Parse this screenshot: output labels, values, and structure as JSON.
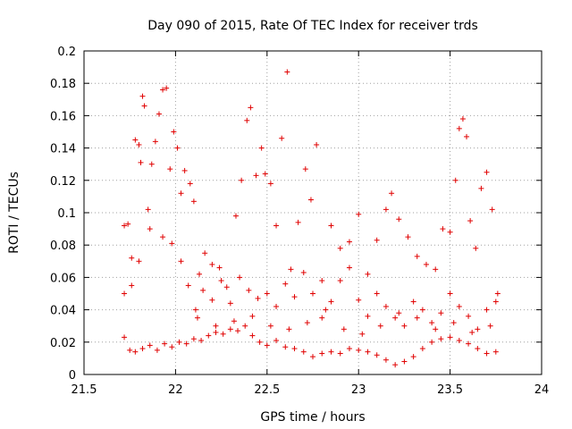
{
  "chart_data": {
    "type": "scatter",
    "title": "Day 090 of 2015, Rate Of TEC Index for receiver trds",
    "xlabel": "GPS time / hours",
    "ylabel": "ROTI / TECUs",
    "xlim": [
      21.5,
      24
    ],
    "ylim": [
      0,
      0.2
    ],
    "xticks": [
      21.5,
      22,
      22.5,
      23,
      23.5,
      24
    ],
    "xtick_labels": [
      "21.5",
      "22",
      "22.5",
      "23",
      "23.5",
      "24"
    ],
    "yticks": [
      0,
      0.02,
      0.04,
      0.06,
      0.08,
      0.1,
      0.12,
      0.14,
      0.16,
      0.18,
      0.2
    ],
    "ytick_labels": [
      "0",
      "0.02",
      "0.04",
      "0.06",
      "0.08",
      "0.1",
      "0.12",
      "0.14",
      "0.16",
      "0.18",
      "0.2"
    ],
    "grid": true,
    "marker": "+",
    "point_color": "#e00000",
    "series": [
      {
        "name": "ROTI",
        "points": [
          [
            21.72,
            0.023
          ],
          [
            21.75,
            0.015
          ],
          [
            21.78,
            0.014
          ],
          [
            21.82,
            0.016
          ],
          [
            21.86,
            0.018
          ],
          [
            21.9,
            0.015
          ],
          [
            21.94,
            0.019
          ],
          [
            21.98,
            0.017
          ],
          [
            22.02,
            0.02
          ],
          [
            22.06,
            0.019
          ],
          [
            22.1,
            0.022
          ],
          [
            22.14,
            0.021
          ],
          [
            22.18,
            0.024
          ],
          [
            22.22,
            0.026
          ],
          [
            22.26,
            0.025
          ],
          [
            22.3,
            0.028
          ],
          [
            22.34,
            0.027
          ],
          [
            22.38,
            0.03
          ],
          [
            22.42,
            0.024
          ],
          [
            22.46,
            0.02
          ],
          [
            22.5,
            0.018
          ],
          [
            22.55,
            0.021
          ],
          [
            22.6,
            0.017
          ],
          [
            22.65,
            0.016
          ],
          [
            22.7,
            0.014
          ],
          [
            22.75,
            0.011
          ],
          [
            22.8,
            0.013
          ],
          [
            22.85,
            0.014
          ],
          [
            22.9,
            0.013
          ],
          [
            22.95,
            0.016
          ],
          [
            23.0,
            0.015
          ],
          [
            23.05,
            0.014
          ],
          [
            23.1,
            0.012
          ],
          [
            23.15,
            0.009
          ],
          [
            23.2,
            0.006
          ],
          [
            23.25,
            0.008
          ],
          [
            23.3,
            0.011
          ],
          [
            23.35,
            0.016
          ],
          [
            23.4,
            0.02
          ],
          [
            23.45,
            0.022
          ],
          [
            23.5,
            0.023
          ],
          [
            23.55,
            0.021
          ],
          [
            23.6,
            0.019
          ],
          [
            23.65,
            0.016
          ],
          [
            23.7,
            0.013
          ],
          [
            23.75,
            0.014
          ],
          [
            21.72,
            0.092
          ],
          [
            21.74,
            0.093
          ],
          [
            21.76,
            0.072
          ],
          [
            21.78,
            0.145
          ],
          [
            21.8,
            0.142
          ],
          [
            21.81,
            0.131
          ],
          [
            21.82,
            0.172
          ],
          [
            21.83,
            0.166
          ],
          [
            21.85,
            0.102
          ],
          [
            21.87,
            0.13
          ],
          [
            21.89,
            0.144
          ],
          [
            21.91,
            0.161
          ],
          [
            21.93,
            0.176
          ],
          [
            21.95,
            0.177
          ],
          [
            21.97,
            0.127
          ],
          [
            21.99,
            0.15
          ],
          [
            22.01,
            0.14
          ],
          [
            22.03,
            0.112
          ],
          [
            22.05,
            0.126
          ],
          [
            22.08,
            0.118
          ],
          [
            22.1,
            0.107
          ],
          [
            22.13,
            0.062
          ],
          [
            22.16,
            0.075
          ],
          [
            22.2,
            0.068
          ],
          [
            22.24,
            0.066
          ],
          [
            22.28,
            0.054
          ],
          [
            22.33,
            0.098
          ],
          [
            22.36,
            0.12
          ],
          [
            22.39,
            0.157
          ],
          [
            22.41,
            0.165
          ],
          [
            22.44,
            0.123
          ],
          [
            22.47,
            0.14
          ],
          [
            22.49,
            0.124
          ],
          [
            22.52,
            0.118
          ],
          [
            22.55,
            0.092
          ],
          [
            22.58,
            0.146
          ],
          [
            22.61,
            0.187
          ],
          [
            22.63,
            0.065
          ],
          [
            22.67,
            0.094
          ],
          [
            22.71,
            0.127
          ],
          [
            22.74,
            0.108
          ],
          [
            22.77,
            0.142
          ],
          [
            22.8,
            0.058
          ],
          [
            22.85,
            0.092
          ],
          [
            22.9,
            0.078
          ],
          [
            22.95,
            0.082
          ],
          [
            23.0,
            0.099
          ],
          [
            23.05,
            0.062
          ],
          [
            23.1,
            0.083
          ],
          [
            23.15,
            0.102
          ],
          [
            23.18,
            0.112
          ],
          [
            23.22,
            0.096
          ],
          [
            23.27,
            0.085
          ],
          [
            23.32,
            0.073
          ],
          [
            23.37,
            0.068
          ],
          [
            23.42,
            0.065
          ],
          [
            23.46,
            0.09
          ],
          [
            23.5,
            0.088
          ],
          [
            23.53,
            0.12
          ],
          [
            23.55,
            0.152
          ],
          [
            23.57,
            0.158
          ],
          [
            23.59,
            0.147
          ],
          [
            23.61,
            0.095
          ],
          [
            23.64,
            0.078
          ],
          [
            23.67,
            0.115
          ],
          [
            23.7,
            0.125
          ],
          [
            23.73,
            0.102
          ],
          [
            23.76,
            0.05
          ],
          [
            21.72,
            0.05
          ],
          [
            21.76,
            0.055
          ],
          [
            21.8,
            0.07
          ],
          [
            21.86,
            0.09
          ],
          [
            21.93,
            0.085
          ],
          [
            21.98,
            0.081
          ],
          [
            22.03,
            0.07
          ],
          [
            22.07,
            0.055
          ],
          [
            22.11,
            0.04
          ],
          [
            22.15,
            0.052
          ],
          [
            22.2,
            0.046
          ],
          [
            22.25,
            0.058
          ],
          [
            22.3,
            0.044
          ],
          [
            22.35,
            0.06
          ],
          [
            22.4,
            0.052
          ],
          [
            22.45,
            0.047
          ],
          [
            22.5,
            0.05
          ],
          [
            22.55,
            0.042
          ],
          [
            22.6,
            0.056
          ],
          [
            22.65,
            0.048
          ],
          [
            22.7,
            0.063
          ],
          [
            22.75,
            0.05
          ],
          [
            22.8,
            0.035
          ],
          [
            22.85,
            0.045
          ],
          [
            22.9,
            0.058
          ],
          [
            22.95,
            0.066
          ],
          [
            23.0,
            0.046
          ],
          [
            23.05,
            0.036
          ],
          [
            23.1,
            0.05
          ],
          [
            23.15,
            0.042
          ],
          [
            23.2,
            0.035
          ],
          [
            23.25,
            0.03
          ],
          [
            23.3,
            0.045
          ],
          [
            23.35,
            0.04
          ],
          [
            23.4,
            0.032
          ],
          [
            23.45,
            0.038
          ],
          [
            23.5,
            0.05
          ],
          [
            23.55,
            0.042
          ],
          [
            23.6,
            0.036
          ],
          [
            23.65,
            0.028
          ],
          [
            23.7,
            0.04
          ],
          [
            23.75,
            0.045
          ],
          [
            22.12,
            0.035
          ],
          [
            22.22,
            0.03
          ],
          [
            22.32,
            0.033
          ],
          [
            22.42,
            0.036
          ],
          [
            22.52,
            0.03
          ],
          [
            22.62,
            0.028
          ],
          [
            22.72,
            0.032
          ],
          [
            22.82,
            0.04
          ],
          [
            22.92,
            0.028
          ],
          [
            23.02,
            0.025
          ],
          [
            23.12,
            0.03
          ],
          [
            23.22,
            0.038
          ],
          [
            23.32,
            0.035
          ],
          [
            23.42,
            0.028
          ],
          [
            23.52,
            0.032
          ],
          [
            23.62,
            0.026
          ],
          [
            23.72,
            0.03
          ]
        ]
      }
    ]
  }
}
